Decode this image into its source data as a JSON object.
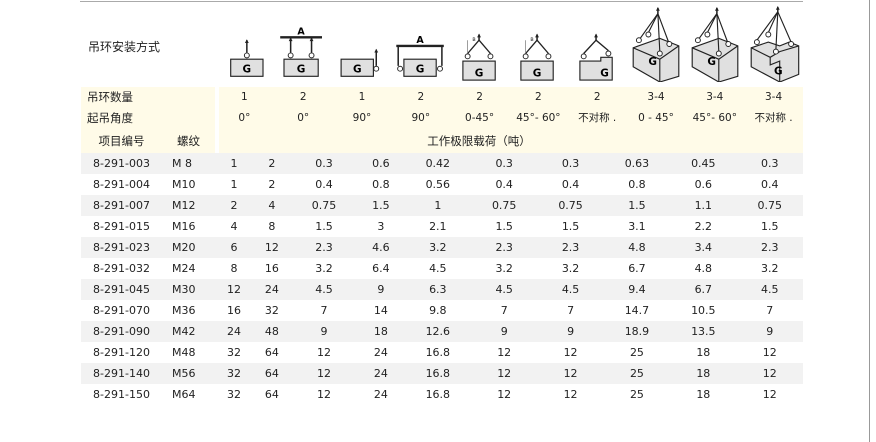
{
  "header": {
    "mount_label": "吊环安装方式",
    "eye_count_label": "吊环数量",
    "angle_label": "起吊角度",
    "item_no_label": "项目编号",
    "thread_label": "螺纹",
    "wll_label": "工作极限载荷（吨）"
  },
  "mount_icons": [
    {
      "name": "single-vertical-icon",
      "letter": "G"
    },
    {
      "name": "double-vertical-beam-icon",
      "letter": "G",
      "beam": "A"
    },
    {
      "name": "single-side-icon",
      "letter": "G"
    },
    {
      "name": "double-side-beam-icon",
      "letter": "G",
      "beam": "A"
    },
    {
      "name": "two-leg-angle-icon",
      "letter": "G"
    },
    {
      "name": "two-leg-angle-icon",
      "letter": "G"
    },
    {
      "name": "two-leg-asymmetric-icon",
      "letter": "G"
    },
    {
      "name": "four-leg-box-icon",
      "letter": "G"
    },
    {
      "name": "four-leg-box-icon",
      "letter": "G"
    },
    {
      "name": "four-leg-asymmetric-box-icon",
      "letter": "G"
    }
  ],
  "eye_counts": [
    "1",
    "2",
    "1",
    "2",
    "2",
    "2",
    "2",
    "3-4",
    "3-4",
    "3-4"
  ],
  "angles": [
    "0°",
    "0°",
    "90°",
    "90°",
    "0-45°",
    "45°- 60°",
    "不对称 .",
    "0 - 45°",
    "45°- 60°",
    "不对称 ."
  ],
  "rows": [
    {
      "id": "8-291-003",
      "thread": "M 8",
      "v": [
        "1",
        "2",
        "0.3",
        "0.6",
        "0.42",
        "0.3",
        "0.3",
        "0.63",
        "0.45",
        "0.3"
      ]
    },
    {
      "id": "8-291-004",
      "thread": "M10",
      "v": [
        "1",
        "2",
        "0.4",
        "0.8",
        "0.56",
        "0.4",
        "0.4",
        "0.8",
        "0.6",
        "0.4"
      ]
    },
    {
      "id": "8-291-007",
      "thread": "M12",
      "v": [
        "2",
        "4",
        "0.75",
        "1.5",
        "1",
        "0.75",
        "0.75",
        "1.5",
        "1.1",
        "0.75"
      ]
    },
    {
      "id": "8-291-015",
      "thread": "M16",
      "v": [
        "4",
        "8",
        "1.5",
        "3",
        "2.1",
        "1.5",
        "1.5",
        "3.1",
        "2.2",
        "1.5"
      ]
    },
    {
      "id": "8-291-023",
      "thread": "M20",
      "v": [
        "6",
        "12",
        "2.3",
        "4.6",
        "3.2",
        "2.3",
        "2.3",
        "4.8",
        "3.4",
        "2.3"
      ]
    },
    {
      "id": "8-291-032",
      "thread": "M24",
      "v": [
        "8",
        "16",
        "3.2",
        "6.4",
        "4.5",
        "3.2",
        "3.2",
        "6.7",
        "4.8",
        "3.2"
      ]
    },
    {
      "id": "8-291-045",
      "thread": "M30",
      "v": [
        "12",
        "24",
        "4.5",
        "9",
        "6.3",
        "4.5",
        "4.5",
        "9.4",
        "6.7",
        "4.5"
      ]
    },
    {
      "id": "8-291-070",
      "thread": "M36",
      "v": [
        "16",
        "32",
        "7",
        "14",
        "9.8",
        "7",
        "7",
        "14.7",
        "10.5",
        "7"
      ]
    },
    {
      "id": "8-291-090",
      "thread": "M42",
      "v": [
        "24",
        "48",
        "9",
        "18",
        "12.6",
        "9",
        "9",
        "18.9",
        "13.5",
        "9"
      ]
    },
    {
      "id": "8-291-120",
      "thread": "M48",
      "v": [
        "32",
        "64",
        "12",
        "24",
        "16.8",
        "12",
        "12",
        "25",
        "18",
        "12"
      ]
    },
    {
      "id": "8-291-140",
      "thread": "M56",
      "v": [
        "32",
        "64",
        "12",
        "24",
        "16.8",
        "12",
        "12",
        "25",
        "18",
        "12"
      ]
    },
    {
      "id": "8-291-150",
      "thread": "M64",
      "v": [
        "32",
        "64",
        "12",
        "24",
        "16.8",
        "12",
        "12",
        "25",
        "18",
        "12"
      ]
    }
  ],
  "colors": {
    "header_bg": "#fffbe8",
    "stripe": "#f2f2f2",
    "box_fill": "#e0e0e0"
  }
}
